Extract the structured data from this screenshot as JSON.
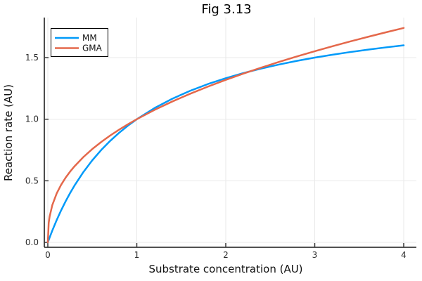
{
  "window": {
    "title": "Fig 3.13"
  },
  "colors": {
    "background": "#ffffff",
    "grid": "#e9e9e9",
    "axis": "#383838",
    "tick_text": "#2b2b2b",
    "title_text": "#000000",
    "legend_border": "#000000",
    "legend_background": "#ffffff",
    "series_mm": "#009af9",
    "series_gma": "#e4684b"
  },
  "chart_data": {
    "type": "line",
    "title": "Fig 3.13",
    "xlabel": "Substrate concentration (AU)",
    "ylabel": "Reaction rate (AU)",
    "xlim": [
      -0.0395,
      4.1423
    ],
    "ylim": [
      -0.0399,
      1.8254
    ],
    "xticks": [
      0,
      1,
      2,
      3,
      4
    ],
    "xtick_labels": [
      "0",
      "1",
      "2",
      "3",
      "4"
    ],
    "yticks": [
      0.0,
      0.5,
      1.0,
      1.5
    ],
    "ytick_labels": [
      "0.0",
      "0.5",
      "1.0",
      "1.5"
    ],
    "grid": true,
    "legend_position": "top-left",
    "series": [
      {
        "name": "MM",
        "color": "#009af9",
        "line_width": 2.5,
        "x": [
          0,
          0.01,
          0.02,
          0.05,
          0.1,
          0.15,
          0.2,
          0.25,
          0.3,
          0.4,
          0.5,
          0.6,
          0.7,
          0.8,
          0.9,
          1.0,
          1.2,
          1.4,
          1.6,
          1.8,
          2.0,
          2.2,
          2.4,
          2.6,
          2.8,
          3.0,
          3.2,
          3.4,
          3.6,
          3.8,
          4.0
        ],
        "y": [
          0,
          0.0198,
          0.0392,
          0.0952,
          0.1818,
          0.2609,
          0.3333,
          0.4,
          0.4615,
          0.5714,
          0.6667,
          0.75,
          0.8235,
          0.8889,
          0.9474,
          1.0,
          1.0909,
          1.1667,
          1.2308,
          1.2857,
          1.3333,
          1.375,
          1.4118,
          1.4444,
          1.4737,
          1.5,
          1.5238,
          1.5455,
          1.5652,
          1.5833,
          1.6
        ]
      },
      {
        "name": "GMA",
        "color": "#e4684b",
        "line_width": 2.5,
        "x": [
          0,
          0.01,
          0.02,
          0.05,
          0.1,
          0.15,
          0.2,
          0.25,
          0.3,
          0.4,
          0.5,
          0.6,
          0.7,
          0.8,
          0.9,
          1.0,
          1.2,
          1.4,
          1.6,
          1.8,
          2.0,
          2.2,
          2.4,
          2.6,
          2.8,
          3.0,
          3.2,
          3.4,
          3.6,
          3.8,
          4.0
        ],
        "y": [
          0,
          0.1585,
          0.2091,
          0.3017,
          0.3981,
          0.4682,
          0.5253,
          0.5743,
          0.6178,
          0.6931,
          0.7579,
          0.8152,
          0.867,
          0.9146,
          0.9587,
          1.0,
          1.0757,
          1.1441,
          1.2068,
          1.2649,
          1.3195,
          1.3706,
          1.4191,
          1.4655,
          1.5096,
          1.5518,
          1.5925,
          1.6317,
          1.6692,
          1.7057,
          1.7411
        ]
      }
    ]
  }
}
